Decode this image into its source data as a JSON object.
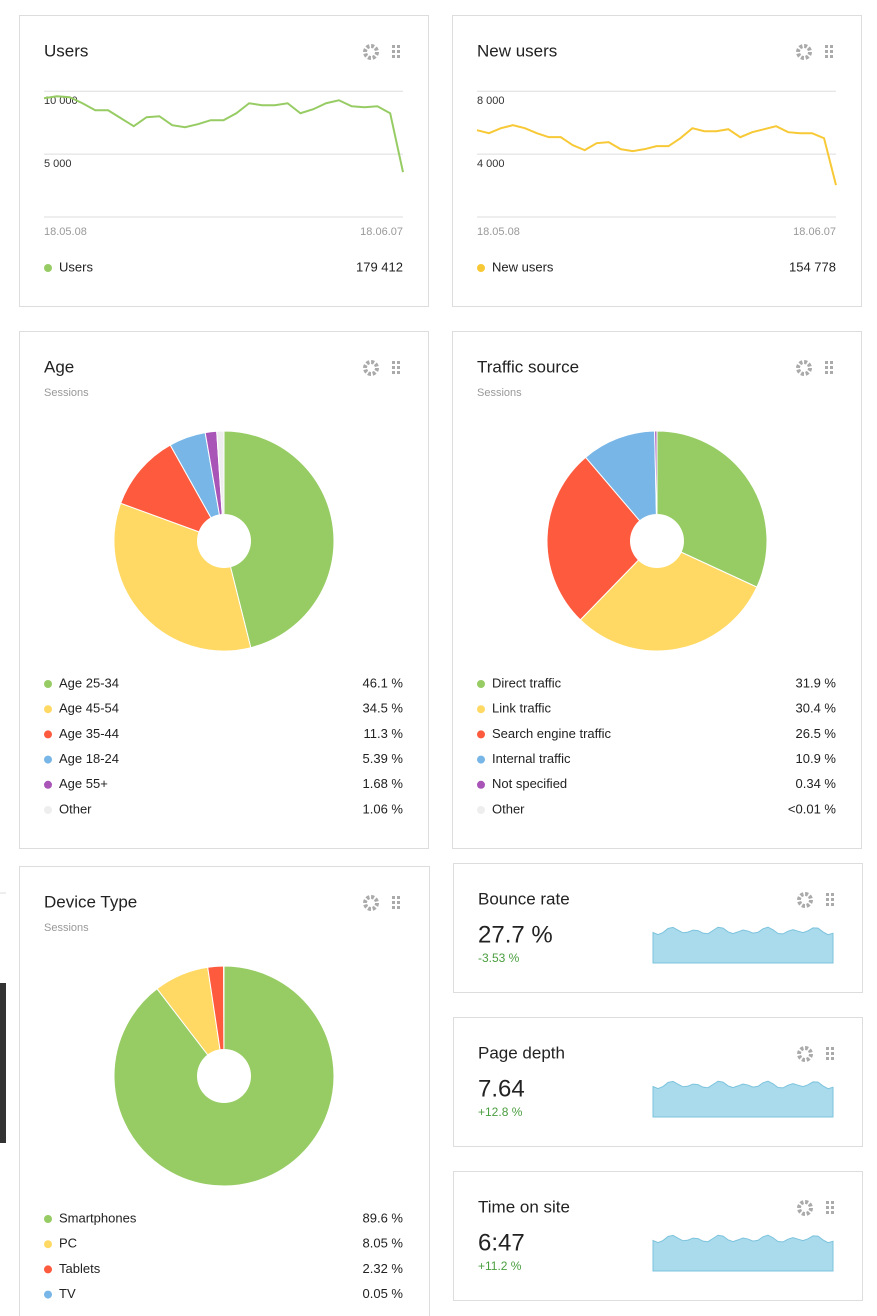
{
  "widgets": [
    {
      "type": "line",
      "title": "Users",
      "x_labels": [
        "18.05.08",
        "18.06.07"
      ],
      "ylim": [
        0,
        10500
      ],
      "yticks": [
        {
          "value": 10000,
          "label": "10 000"
        },
        {
          "value": 5000,
          "label": "5 000"
        }
      ],
      "series": [
        {
          "name": "Users",
          "color": "#97cc64",
          "total": 179412,
          "total_label": "179 412",
          "values": [
            9444,
            9603,
            9524,
            9048,
            8492,
            8492,
            7857,
            7222,
            7937,
            8016,
            7302,
            7143,
            7381,
            7698,
            7698,
            8254,
            9048,
            8889,
            8889,
            9048,
            8254,
            8571,
            9048,
            9286,
            8810,
            8730,
            8810,
            8254,
            3571
          ]
        }
      ]
    },
    {
      "type": "line",
      "title": "New users",
      "x_labels": [
        "18.05.08",
        "18.06.07"
      ],
      "ylim": [
        0,
        8400
      ],
      "yticks": [
        {
          "value": 8000,
          "label": "8 000"
        },
        {
          "value": 4000,
          "label": "4 000"
        }
      ],
      "series": [
        {
          "name": "New users",
          "color": "#f8c936",
          "total": 154778,
          "total_label": "154 778",
          "values": [
            5524,
            5333,
            5651,
            5841,
            5651,
            5333,
            5079,
            5079,
            4571,
            4254,
            4698,
            4762,
            4317,
            4190,
            4317,
            4508,
            4508,
            5016,
            5651,
            5460,
            5460,
            5587,
            5079,
            5397,
            5587,
            5778,
            5397,
            5333,
            5333,
            5016,
            2032
          ]
        }
      ]
    },
    {
      "type": "pie",
      "title": "Age",
      "subtitle": "Sessions",
      "categories": [
        "Age 25-34",
        "Age 45-54",
        "Age 35-44",
        "Age 18-24",
        "Age 55+",
        "Other"
      ],
      "values": [
        46.1,
        34.5,
        11.3,
        5.39,
        1.68,
        1.06
      ],
      "value_labels": [
        "46.1 %",
        "34.5 %",
        "11.3 %",
        "5.39 %",
        "1.68 %",
        "1.06 %"
      ],
      "colors": [
        "#97cc64",
        "#ffd963",
        "#fd5a3e",
        "#77b6e7",
        "#a955b8",
        "#eeeeee"
      ]
    },
    {
      "type": "pie",
      "title": "Traffic source",
      "subtitle": "Sessions",
      "categories": [
        "Direct traffic",
        "Link traffic",
        "Search engine traffic",
        "Internal traffic",
        "Not specified",
        "Other"
      ],
      "values": [
        31.9,
        30.4,
        26.5,
        10.9,
        0.34,
        0.005
      ],
      "value_labels": [
        "31.9 %",
        "30.4 %",
        "26.5 %",
        "10.9 %",
        "0.34 %",
        "<0.01 %"
      ],
      "colors": [
        "#97cc64",
        "#ffd963",
        "#fd5a3e",
        "#77b6e7",
        "#a955b8",
        "#eeeeee"
      ]
    },
    {
      "type": "pie",
      "title": "Device Type",
      "subtitle": "Sessions",
      "categories": [
        "Smartphones",
        "PC",
        "Tablets",
        "TV"
      ],
      "values": [
        89.6,
        8.05,
        2.32,
        0.05
      ],
      "value_labels": [
        "89.6 %",
        "8.05 %",
        "2.32 %",
        "0.05 %"
      ],
      "colors": [
        "#97cc64",
        "#ffd963",
        "#fd5a3e",
        "#77b6e7"
      ]
    },
    {
      "type": "kpi",
      "title": "Bounce rate",
      "value": 27.7,
      "value_label": "27.7 %",
      "change": -3.53,
      "change_label": "-3.53 %"
    },
    {
      "type": "kpi",
      "title": "Page depth",
      "value": 7.64,
      "value_label": "7.64",
      "change": 12.8,
      "change_label": "+12.8 %"
    },
    {
      "type": "kpi",
      "title": "Time on site",
      "value_label": "6:47",
      "change": 11.2,
      "change_label": "+11.2 %"
    }
  ]
}
